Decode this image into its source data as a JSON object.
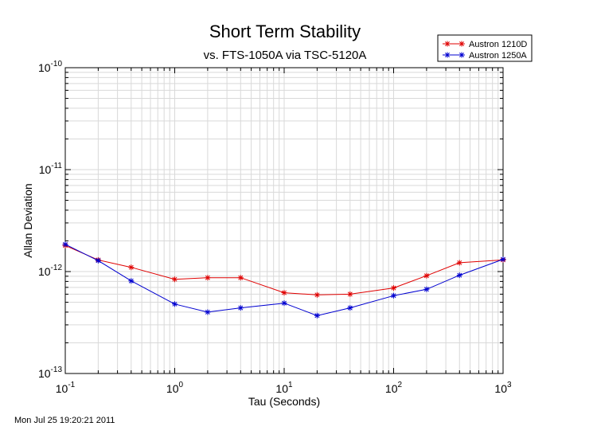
{
  "chart_data": {
    "type": "line",
    "title": "Short Term Stability",
    "subtitle": "vs. FTS-1050A via TSC-5120A",
    "xlabel": "Tau (Seconds)",
    "ylabel": "Allan Deviation",
    "x_scale": "log",
    "y_scale": "log",
    "xlim": [
      0.1,
      1000
    ],
    "ylim": [
      1e-13,
      1e-10
    ],
    "grid": true,
    "legend_position": "top-right",
    "x_ticks": [
      {
        "base": "10",
        "exp": "-1",
        "value": 0.1
      },
      {
        "base": "10",
        "exp": "0",
        "value": 1
      },
      {
        "base": "10",
        "exp": "1",
        "value": 10
      },
      {
        "base": "10",
        "exp": "2",
        "value": 100
      },
      {
        "base": "10",
        "exp": "3",
        "value": 1000
      }
    ],
    "y_ticks": [
      {
        "base": "10",
        "exp": "-10",
        "value": 1e-10
      },
      {
        "base": "10",
        "exp": "-11",
        "value": 1e-11
      },
      {
        "base": "10",
        "exp": "-12",
        "value": 1e-12
      },
      {
        "base": "10",
        "exp": "-13",
        "value": 1e-13
      }
    ],
    "x": [
      0.1,
      0.2,
      0.4,
      1,
      2,
      4,
      10,
      20,
      40,
      100,
      200,
      400,
      1000
    ],
    "series": [
      {
        "name": "Austron 1210D",
        "color": "#e00000",
        "marker": "asterisk",
        "values": [
          1.8e-12,
          1.3e-12,
          1.1e-12,
          8.4e-13,
          8.7e-13,
          8.7e-13,
          6.2e-13,
          5.9e-13,
          6e-13,
          6.9e-13,
          9.1e-13,
          1.22e-12,
          1.3e-12
        ]
      },
      {
        "name": "Austron 1250A",
        "color": "#0000d0",
        "marker": "asterisk",
        "values": [
          1.85e-12,
          1.28e-12,
          8.1e-13,
          4.8e-13,
          4e-13,
          4.4e-13,
          4.9e-13,
          3.7e-13,
          4.4e-13,
          5.8e-13,
          6.7e-13,
          9.2e-13,
          1.32e-12
        ]
      }
    ]
  },
  "footer": {
    "timestamp": "Mon Jul 25 19:20:21 2011"
  }
}
